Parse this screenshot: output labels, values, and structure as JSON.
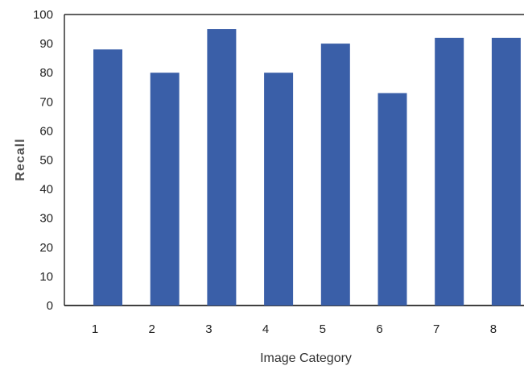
{
  "chart_data": {
    "type": "bar",
    "categories": [
      "1",
      "2",
      "3",
      "4",
      "5",
      "6",
      "7",
      "8"
    ],
    "values": [
      88,
      80,
      95,
      80,
      90,
      73,
      92,
      92
    ],
    "title": "",
    "xlabel": "Image Category",
    "ylabel": "Recall",
    "ylim": [
      0,
      100
    ],
    "yticks": [
      0,
      10,
      20,
      30,
      40,
      50,
      60,
      70,
      80,
      90,
      100
    ],
    "grid": false,
    "legend": "none",
    "colors": {
      "bar": "#3a5fa8",
      "axis": "#000000"
    }
  }
}
